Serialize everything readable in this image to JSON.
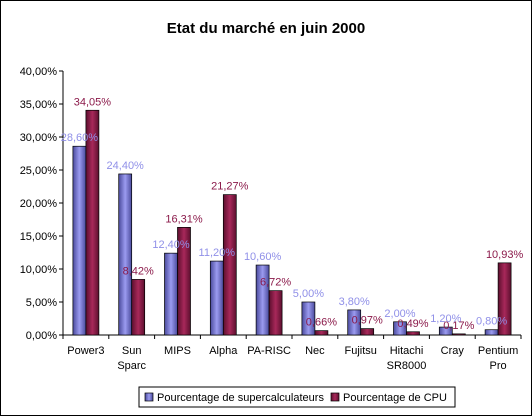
{
  "chart_data": {
    "type": "bar",
    "title": "Etat du marché en juin 2000",
    "xlabel": "",
    "ylabel": "",
    "ylim": [
      0,
      40
    ],
    "yticks": [
      "0,00%",
      "5,00%",
      "10,00%",
      "15,00%",
      "20,00%",
      "25,00%",
      "30,00%",
      "35,00%",
      "40,00%"
    ],
    "categories": [
      [
        "Power3"
      ],
      [
        "Sun",
        "Sparc"
      ],
      [
        "MIPS"
      ],
      [
        "Alpha"
      ],
      [
        "PA-RISC"
      ],
      [
        "Nec"
      ],
      [
        "Fujitsu"
      ],
      [
        "Hitachi",
        "SR8000"
      ],
      [
        "Cray"
      ],
      [
        "Pentium",
        "Pro"
      ]
    ],
    "series": [
      {
        "name": "Pourcentage de supercalculateurs",
        "values": [
          28.6,
          24.4,
          12.4,
          11.2,
          10.6,
          5.0,
          3.8,
          2.0,
          1.2,
          0.8
        ],
        "labels": [
          "28,60%",
          "24,40%",
          "12,40%",
          "11,20%",
          "10,60%",
          "5,00%",
          "3,80%",
          "2,00%",
          "1,20%",
          "0,80%"
        ],
        "color": "#6f6fcf",
        "label_color": "#9090e8"
      },
      {
        "name": "Pourcentage de CPU",
        "values": [
          34.05,
          8.42,
          16.31,
          21.27,
          6.72,
          0.66,
          0.97,
          0.49,
          0.17,
          10.93
        ],
        "labels": [
          "34,05%",
          "8,42%",
          "16,31%",
          "21,27%",
          "6,72%",
          "0,66%",
          "0,97%",
          "0,49%",
          "0,17%",
          "10,93%"
        ],
        "color": "#8a1c46",
        "label_color": "#8b1a4a"
      }
    ],
    "grid": false,
    "legend": "bottom"
  }
}
